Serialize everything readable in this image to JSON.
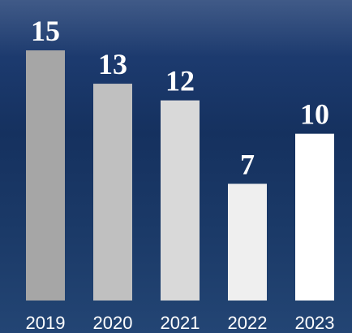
{
  "chart_data": {
    "type": "bar",
    "categories": [
      "2019",
      "2020",
      "2021",
      "2022",
      "2023"
    ],
    "values": [
      15,
      13,
      12,
      7,
      10
    ],
    "colors": [
      "#a6a6a6",
      "#c0c0c0",
      "#d9d9d9",
      "#efefef",
      "#ffffff"
    ],
    "ylim": [
      0,
      15
    ]
  }
}
